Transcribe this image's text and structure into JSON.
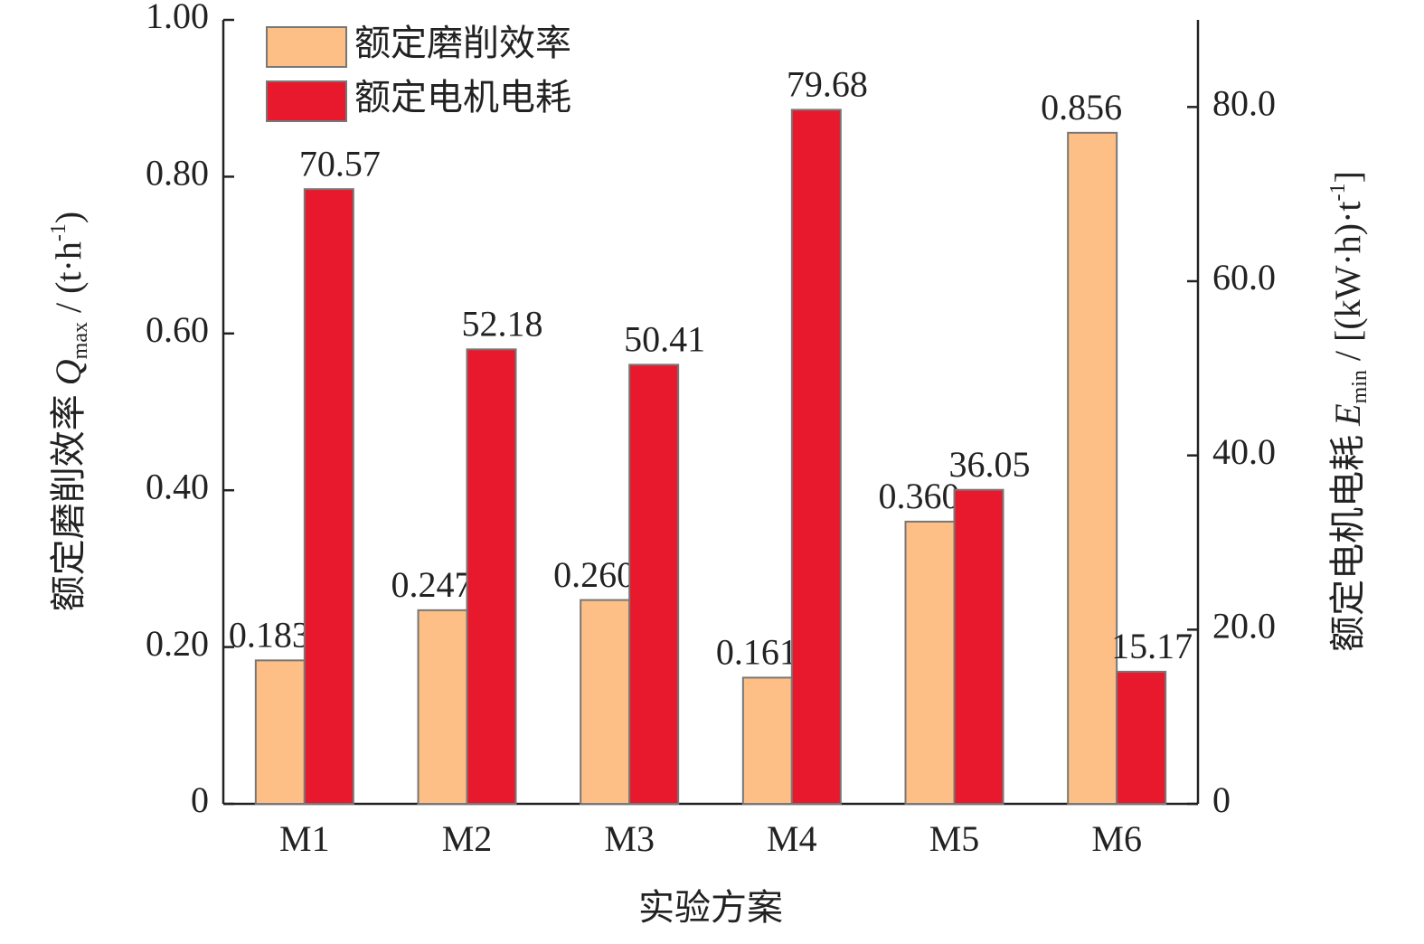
{
  "chart_data": {
    "type": "bar",
    "categories": [
      "M1",
      "M2",
      "M3",
      "M4",
      "M5",
      "M6"
    ],
    "xlabel": "实验方案",
    "ylabel": [
      "额定磨削效率 ",
      "Q",
      "max",
      " / (t·h",
      "-1",
      ")"
    ],
    "y2label": [
      "额定电机电耗 ",
      "E",
      "min",
      " / [(kW·h)·t",
      "-1",
      "]"
    ],
    "ylim": [
      0,
      1
    ],
    "yticks": [
      0,
      {
        "value": 0.2,
        "label": "0.20"
      },
      {
        "value": 0.4,
        "label": "0.40"
      },
      {
        "value": 0.6,
        "label": "0.60"
      },
      {
        "value": 0.8,
        "label": "0.80"
      },
      {
        "value": 1,
        "label": "1.00"
      }
    ],
    "y2lim": [
      0,
      90
    ],
    "y2ticks": [
      0,
      {
        "value": 20,
        "label": "20.0"
      },
      {
        "value": 40,
        "label": "40.0"
      },
      {
        "value": 60,
        "label": "60.0"
      },
      {
        "value": 80,
        "label": "80.0"
      }
    ],
    "legend": "upper left",
    "series": [
      {
        "name": "额定磨削效率",
        "color": "#fdbf86",
        "values": [
          0.183,
          0.247,
          0.26,
          0.161,
          0.36,
          0.856
        ],
        "value_labels": [
          "0.183",
          "0.247",
          "0.260",
          "0.161",
          "0.360",
          "0.856"
        ]
      },
      {
        "name": "额定电机电耗",
        "color": "#e8192c",
        "axis": "y2",
        "values": [
          70.57,
          52.18,
          50.41,
          79.68,
          36.05,
          15.17
        ]
      }
    ]
  }
}
